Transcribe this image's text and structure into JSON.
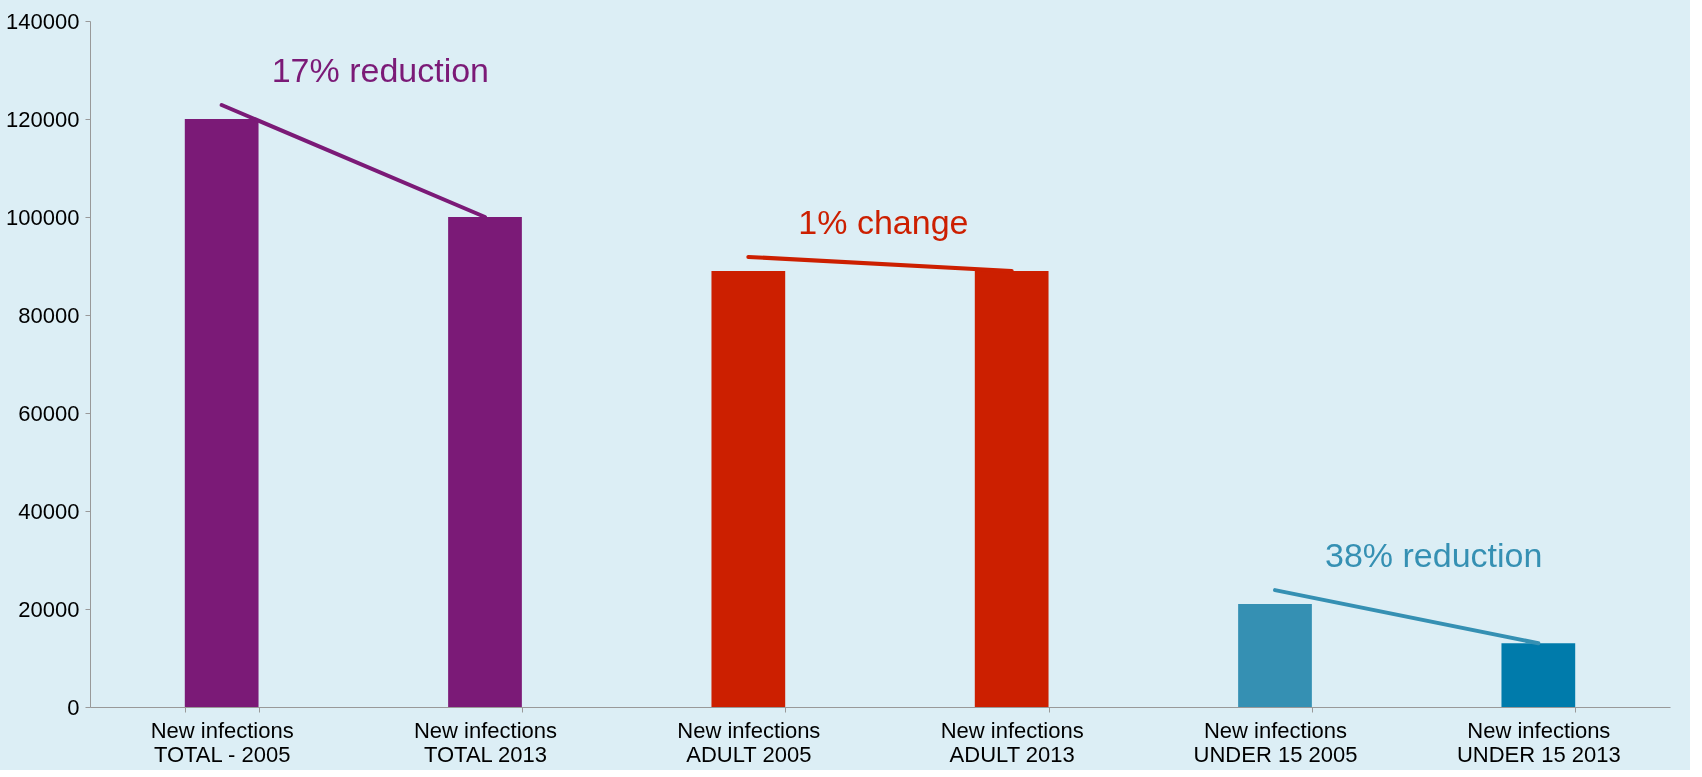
{
  "chart_data": {
    "type": "bar",
    "categories": [
      "New infections\nTOTAL - 2005",
      "New infections\nTOTAL 2013",
      "New infections\nADULT 2005",
      "New infections\nADULT 2013",
      "New infections\nUNDER 15  2005",
      "New infections\nUNDER 15 2013"
    ],
    "values": [
      120000,
      100000,
      89000,
      89000,
      21000,
      13000
    ],
    "colors": [
      "#7b1a77",
      "#7b1a77",
      "#cc1f00",
      "#cc1f00",
      "#3590b3",
      "#007bab"
    ],
    "ylim": [
      0,
      140000
    ],
    "yticks": [
      0,
      20000,
      40000,
      60000,
      80000,
      100000,
      120000,
      140000
    ],
    "grid": false,
    "annotations": [
      "17% reduction",
      "1% change",
      "38% reduction"
    ]
  }
}
